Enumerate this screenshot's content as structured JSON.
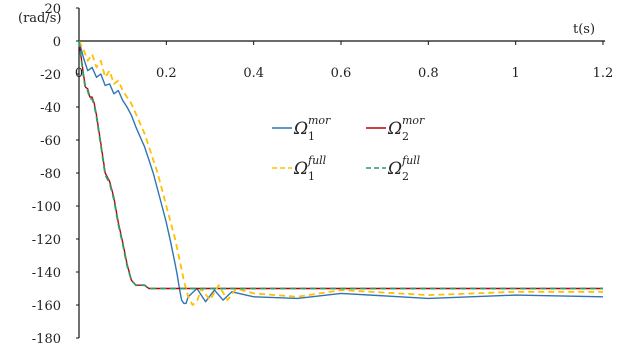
{
  "chart_data": {
    "type": "line",
    "title": "",
    "xlabel": "t(s)",
    "ylabel": "(rad/s)",
    "xlim": [
      0,
      1.2
    ],
    "ylim": [
      -180,
      20
    ],
    "x_ticks": [
      "0",
      "0.2",
      "0.4",
      "0.6",
      "0.8",
      "1",
      "1.2"
    ],
    "y_ticks": [
      "20",
      "0",
      "-20",
      "-40",
      "-60",
      "-80",
      "-100",
      "-120",
      "-140",
      "-160",
      "-180"
    ],
    "y_tick_values": [
      20,
      0,
      -20,
      -40,
      -60,
      -80,
      -100,
      -120,
      -140,
      -160,
      -180
    ],
    "x_tick_values": [
      0,
      0.2,
      0.4,
      0.6,
      0.8,
      1.0,
      1.2
    ],
    "grid": false,
    "legend_position": "center",
    "series": [
      {
        "name": "Ω1 mor",
        "base": "Ω",
        "sub": "1",
        "sup": "mor",
        "color": "#2e75b6",
        "dash": "solid",
        "x": [
          0,
          0.01,
          0.02,
          0.03,
          0.04,
          0.05,
          0.06,
          0.07,
          0.08,
          0.09,
          0.1,
          0.11,
          0.12,
          0.13,
          0.14,
          0.15,
          0.16,
          0.17,
          0.18,
          0.19,
          0.2,
          0.21,
          0.22,
          0.225,
          0.23,
          0.235,
          0.24,
          0.245,
          0.25,
          0.27,
          0.29,
          0.31,
          0.33,
          0.35,
          0.4,
          0.5,
          0.6,
          0.8,
          1.0,
          1.2
        ],
        "y": [
          0,
          -10,
          -18,
          -16,
          -22,
          -20,
          -27,
          -26,
          -32,
          -30,
          -36,
          -40,
          -45,
          -52,
          -58,
          -64,
          -72,
          -80,
          -90,
          -100,
          -110,
          -122,
          -135,
          -142,
          -150,
          -157,
          -159,
          -159,
          -155,
          -150,
          -158,
          -151,
          -157,
          -152,
          -155,
          -156,
          -153,
          -156,
          -154,
          -155
        ]
      },
      {
        "name": "Ω2 mor",
        "base": "Ω",
        "sub": "2",
        "sup": "mor",
        "color": "#c00000",
        "dash": "solid",
        "x": [
          0,
          0.01,
          0.015,
          0.02,
          0.025,
          0.03,
          0.035,
          0.04,
          0.05,
          0.06,
          0.07,
          0.08,
          0.09,
          0.1,
          0.11,
          0.12,
          0.13,
          0.14,
          0.15,
          0.16,
          0.18,
          0.2,
          0.3,
          0.4,
          0.6,
          0.8,
          1.0,
          1.2
        ],
        "y": [
          0,
          -20,
          -28,
          -29,
          -34,
          -34,
          -38,
          -45,
          -62,
          -80,
          -85,
          -95,
          -110,
          -122,
          -135,
          -145,
          -148,
          -148,
          -148,
          -150,
          -150,
          -150,
          -150,
          -150,
          -150,
          -150,
          -150,
          -150
        ]
      },
      {
        "name": "Ω1 full",
        "base": "Ω",
        "sub": "1",
        "sup": "full",
        "color": "#ffc000",
        "dash": "dashed",
        "x": [
          0,
          0.01,
          0.02,
          0.03,
          0.04,
          0.05,
          0.06,
          0.07,
          0.08,
          0.09,
          0.1,
          0.11,
          0.12,
          0.13,
          0.14,
          0.15,
          0.16,
          0.17,
          0.18,
          0.19,
          0.2,
          0.21,
          0.22,
          0.23,
          0.24,
          0.25,
          0.26,
          0.27,
          0.28,
          0.3,
          0.32,
          0.34,
          0.36,
          0.4,
          0.5,
          0.6,
          0.8,
          1.0,
          1.2
        ],
        "y": [
          0,
          -5,
          -12,
          -8,
          -16,
          -12,
          -22,
          -18,
          -26,
          -24,
          -30,
          -34,
          -38,
          -44,
          -50,
          -56,
          -64,
          -72,
          -80,
          -90,
          -100,
          -110,
          -120,
          -132,
          -145,
          -155,
          -160,
          -158,
          -150,
          -157,
          -148,
          -157,
          -150,
          -153,
          -155,
          -151,
          -154,
          -152,
          -152
        ]
      },
      {
        "name": "Ω2 full",
        "base": "Ω",
        "sub": "2",
        "sup": "full",
        "color": "#2e9b6a",
        "dash": "dashed",
        "x": [
          0,
          0.01,
          0.015,
          0.02,
          0.025,
          0.03,
          0.035,
          0.04,
          0.05,
          0.06,
          0.07,
          0.08,
          0.09,
          0.1,
          0.11,
          0.12,
          0.13,
          0.14,
          0.15,
          0.16,
          0.18,
          0.2,
          0.3,
          0.4,
          0.6,
          0.8,
          1.0,
          1.2
        ],
        "y": [
          0,
          -21,
          -29,
          -30,
          -35,
          -35,
          -39,
          -46,
          -63,
          -81,
          -86,
          -96,
          -111,
          -123,
          -136,
          -145,
          -148,
          -148,
          -148,
          -150,
          -150,
          -150,
          -150,
          -150,
          -150,
          -150,
          -150,
          -150
        ]
      }
    ]
  }
}
